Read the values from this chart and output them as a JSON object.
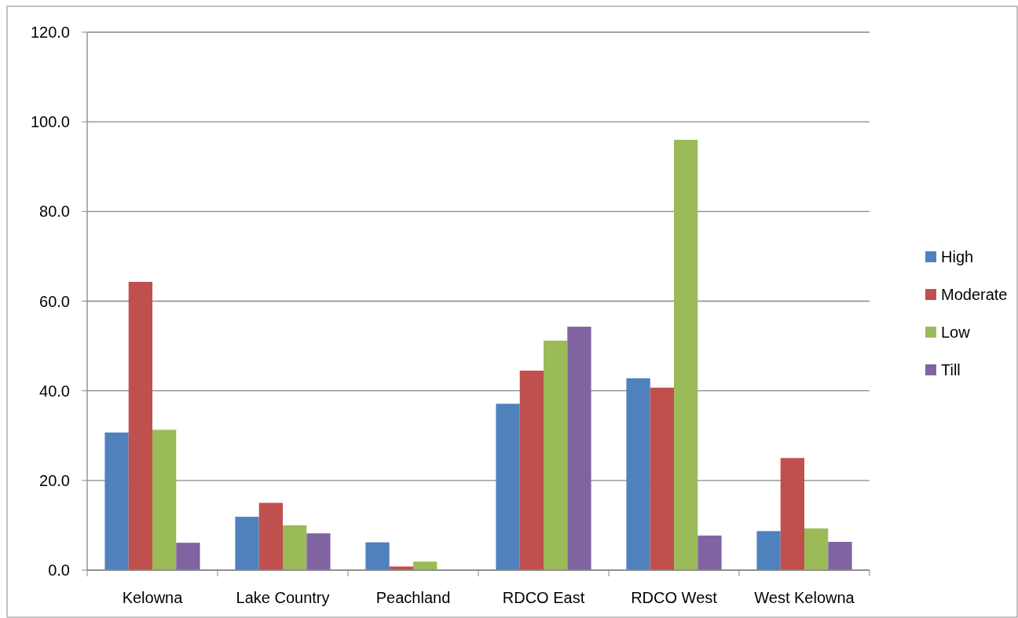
{
  "chart_data": {
    "type": "bar",
    "categories": [
      "Kelowna",
      "Lake Country",
      "Peachland",
      "RDCO East",
      "RDCO West",
      "West Kelowna"
    ],
    "series": [
      {
        "name": "High",
        "color": "#4f81bd",
        "values": [
          30.7,
          11.9,
          6.2,
          37.1,
          42.8,
          8.7
        ]
      },
      {
        "name": "Moderate",
        "color": "#c0504d",
        "values": [
          64.3,
          15.0,
          0.8,
          44.5,
          40.7,
          25.0
        ]
      },
      {
        "name": "Low",
        "color": "#9bbb59",
        "values": [
          31.3,
          10.0,
          1.9,
          51.2,
          96.0,
          9.3
        ]
      },
      {
        "name": "Till",
        "color": "#8064a2",
        "values": [
          6.1,
          8.2,
          0,
          54.3,
          7.7,
          6.3
        ]
      }
    ],
    "ylim": [
      0,
      120
    ],
    "yticks": [
      {
        "value": 0,
        "label": "0.0"
      },
      {
        "value": 20,
        "label": "20.0"
      },
      {
        "value": 40,
        "label": "40.0"
      },
      {
        "value": 60,
        "label": "60.0"
      },
      {
        "value": 80,
        "label": "80.0"
      },
      {
        "value": 100,
        "label": "100.0"
      },
      {
        "value": 120,
        "label": "120.0"
      }
    ],
    "grid": "y",
    "legend": "right"
  }
}
